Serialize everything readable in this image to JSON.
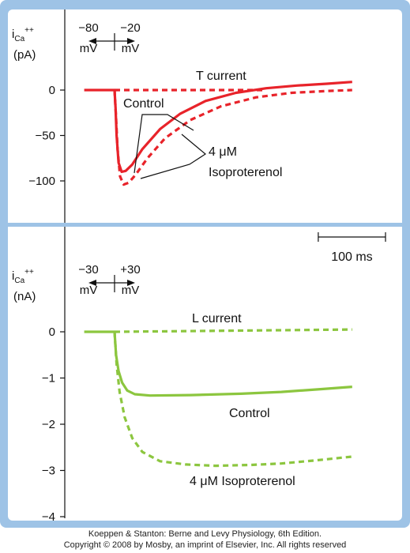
{
  "chart_data": [
    {
      "type": "line",
      "panel": "top",
      "ylabel_parts": [
        "i",
        "Ca",
        "++",
        "(pA)"
      ],
      "yticks": [
        0,
        -50,
        -100
      ],
      "ylim": [
        -120,
        20
      ],
      "xlim": [
        0,
        500
      ],
      "grid": false,
      "voltage_step": {
        "from": "−80",
        "to": "−20",
        "unit": "mV"
      },
      "current_label": "T current",
      "series": [
        {
          "name": "Control",
          "color": "#e8232a",
          "dash": "solid",
          "points": [
            [
              -60,
              0
            ],
            [
              -10,
              0
            ],
            [
              0,
              0
            ],
            [
              2,
              -20
            ],
            [
              4,
              -50
            ],
            [
              8,
              -80
            ],
            [
              14,
              -90
            ],
            [
              22,
              -89
            ],
            [
              35,
              -82
            ],
            [
              55,
              -65
            ],
            [
              90,
              -43
            ],
            [
              130,
              -26
            ],
            [
              180,
              -12
            ],
            [
              240,
              -3
            ],
            [
              300,
              2
            ],
            [
              360,
              5
            ],
            [
              420,
              7
            ],
            [
              470,
              9
            ]
          ]
        },
        {
          "name": "4 μM Isoproterenol",
          "color": "#e8232a",
          "dash": "dashed",
          "points": [
            [
              0,
              0
            ],
            [
              3,
              -30
            ],
            [
              6,
              -65
            ],
            [
              11,
              -95
            ],
            [
              18,
              -104
            ],
            [
              28,
              -102
            ],
            [
              42,
              -93
            ],
            [
              65,
              -75
            ],
            [
              100,
              -53
            ],
            [
              150,
              -33
            ],
            [
              210,
              -18
            ],
            [
              280,
              -8
            ],
            [
              350,
              -3
            ],
            [
              420,
              -1
            ],
            [
              470,
              0
            ]
          ]
        },
        {
          "name": "T current",
          "color": "#e8232a",
          "dash": "dashed",
          "points": [
            [
              0,
              0
            ],
            [
              300,
              0
            ]
          ]
        }
      ],
      "annotations": {
        "control": "Control",
        "iso_line1": "4 μM",
        "iso_line2": "Isoproterenol"
      }
    },
    {
      "type": "line",
      "panel": "bottom",
      "ylabel_parts": [
        "i",
        "Ca",
        "++",
        "(nA)"
      ],
      "yticks": [
        0,
        -1,
        -2,
        -3,
        -4
      ],
      "ylim": [
        -4,
        0.3
      ],
      "xlim": [
        0,
        500
      ],
      "grid": false,
      "voltage_step": {
        "from": "−30",
        "to": "+30",
        "unit": "mV"
      },
      "current_label": "L  current",
      "scale_bar": {
        "duration_ms": 100,
        "label": "100 ms"
      },
      "series": [
        {
          "name": "Control",
          "color": "#8cc63f",
          "dash": "solid",
          "points": [
            [
              -60,
              0
            ],
            [
              -10,
              0
            ],
            [
              0,
              0
            ],
            [
              3,
              -0.5
            ],
            [
              8,
              -0.85
            ],
            [
              15,
              -1.1
            ],
            [
              25,
              -1.27
            ],
            [
              40,
              -1.35
            ],
            [
              70,
              -1.38
            ],
            [
              150,
              -1.37
            ],
            [
              250,
              -1.34
            ],
            [
              330,
              -1.3
            ],
            [
              410,
              -1.24
            ],
            [
              470,
              -1.19
            ]
          ]
        },
        {
          "name": "4 μM Isoproterenol",
          "color": "#8cc63f",
          "dash": "dashed",
          "points": [
            [
              0,
              0
            ],
            [
              4,
              -0.7
            ],
            [
              10,
              -1.3
            ],
            [
              20,
              -1.85
            ],
            [
              35,
              -2.3
            ],
            [
              55,
              -2.6
            ],
            [
              90,
              -2.8
            ],
            [
              140,
              -2.87
            ],
            [
              200,
              -2.9
            ],
            [
              270,
              -2.88
            ],
            [
              330,
              -2.85
            ],
            [
              400,
              -2.78
            ],
            [
              470,
              -2.7
            ]
          ]
        },
        {
          "name": "L  current",
          "color": "#8cc63f",
          "dash": "dashed",
          "points": [
            [
              0,
              0
            ],
            [
              470,
              0.05
            ]
          ]
        }
      ],
      "annotations": {
        "control": "Control",
        "iso": "4 μM Isoproterenol"
      }
    }
  ],
  "footer": {
    "line1": "Koeppen & Stanton: Berne and Levy Physiology, 6th Edition.",
    "line2": "Copyright © 2008 by Mosby, an imprint of Elsevier, Inc. All rights reserved"
  }
}
